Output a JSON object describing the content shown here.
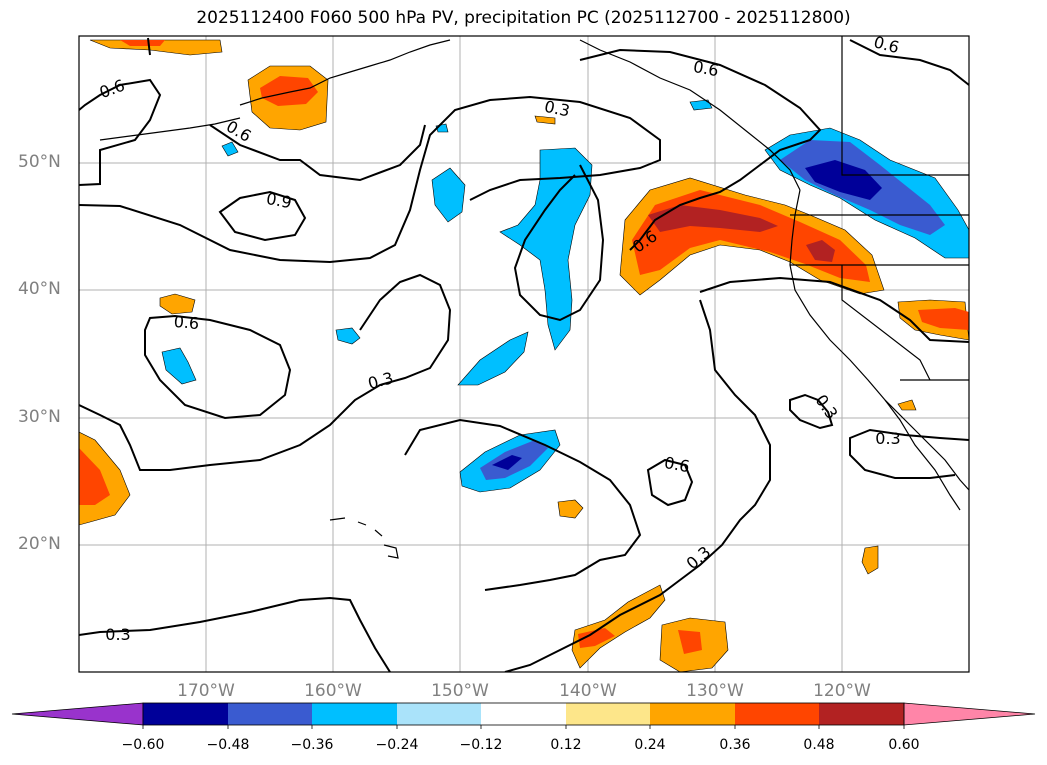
{
  "title": "2025112400 F060 500 hPa PV, precipitation PC (2025112700 - 2025112800)",
  "map": {
    "lat_labels": [
      "50°N",
      "40°N",
      "30°N",
      "20°N"
    ],
    "lon_labels": [
      "170°W",
      "160°W",
      "150°W",
      "140°W",
      "130°W",
      "120°W"
    ],
    "contour_labels": [
      "0.6",
      "0.6",
      "0.6",
      "0.6",
      "0.3",
      "0.9",
      "0.6",
      "0.6",
      "0.3",
      "0.3",
      "0.3",
      "0.6",
      "0.3",
      "0.3"
    ],
    "colors": {
      "neg_extend": "#9933cc",
      "navy": "#000099",
      "royal": "#3a5bd0",
      "deepsky": "#00bfff",
      "lightblue": "#aae3fa",
      "white": "#ffffff",
      "yellow": "#fde68a",
      "orange": "#ffa500",
      "orangered": "#ff4500",
      "firebrick": "#b22222",
      "pink": "#ff85a8"
    }
  },
  "colorbar": {
    "ticks": [
      "−0.60",
      "−0.48",
      "−0.36",
      "−0.24",
      "−0.12",
      "0.12",
      "0.24",
      "0.36",
      "0.48",
      "0.60"
    ]
  }
}
